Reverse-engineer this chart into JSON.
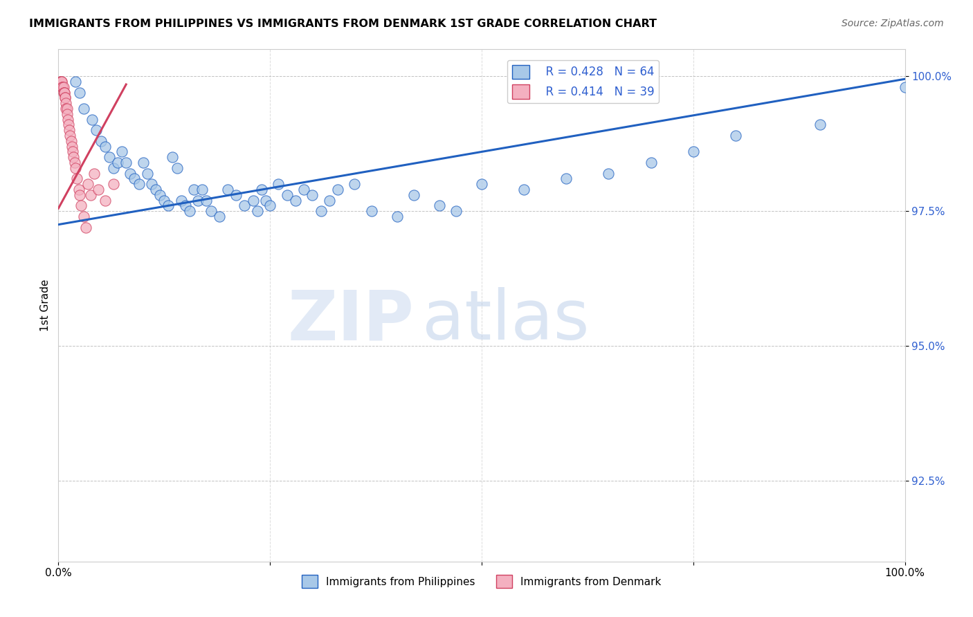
{
  "title": "IMMIGRANTS FROM PHILIPPINES VS IMMIGRANTS FROM DENMARK 1ST GRADE CORRELATION CHART",
  "source": "Source: ZipAtlas.com",
  "ylabel": "1st Grade",
  "legend_label_blue": "Immigrants from Philippines",
  "legend_label_pink": "Immigrants from Denmark",
  "R_blue": 0.428,
  "N_blue": 64,
  "R_pink": 0.414,
  "N_pink": 39,
  "xlim": [
    0.0,
    1.0
  ],
  "ylim": [
    0.91,
    1.005
  ],
  "yticks": [
    0.925,
    0.95,
    0.975,
    1.0
  ],
  "ytick_labels": [
    "92.5%",
    "95.0%",
    "97.5%",
    "100.0%"
  ],
  "xticks": [
    0.0,
    0.25,
    0.5,
    0.75,
    1.0
  ],
  "xtick_labels": [
    "0.0%",
    "",
    "",
    "",
    "100.0%"
  ],
  "watermark_zip": "ZIP",
  "watermark_atlas": "atlas",
  "color_blue": "#a8c8e8",
  "color_pink": "#f4b0c0",
  "color_blue_line": "#2060c0",
  "color_pink_line": "#d04060",
  "blue_line_x": [
    0.0,
    1.0
  ],
  "blue_line_y": [
    0.9725,
    0.9995
  ],
  "pink_line_x": [
    0.0,
    0.08
  ],
  "pink_line_y": [
    0.9755,
    0.9985
  ],
  "blue_x": [
    0.02,
    0.025,
    0.03,
    0.04,
    0.045,
    0.05,
    0.055,
    0.06,
    0.065,
    0.07,
    0.075,
    0.08,
    0.085,
    0.09,
    0.095,
    0.1,
    0.105,
    0.11,
    0.115,
    0.12,
    0.125,
    0.13,
    0.135,
    0.14,
    0.145,
    0.15,
    0.155,
    0.16,
    0.165,
    0.17,
    0.175,
    0.18,
    0.19,
    0.2,
    0.21,
    0.22,
    0.23,
    0.235,
    0.24,
    0.245,
    0.25,
    0.26,
    0.27,
    0.28,
    0.29,
    0.3,
    0.31,
    0.32,
    0.33,
    0.35,
    0.37,
    0.4,
    0.42,
    0.45,
    0.47,
    0.5,
    0.55,
    0.6,
    0.65,
    0.7,
    0.75,
    0.8,
    0.9,
    1.0
  ],
  "blue_y": [
    0.999,
    0.997,
    0.994,
    0.992,
    0.99,
    0.988,
    0.987,
    0.985,
    0.983,
    0.984,
    0.986,
    0.984,
    0.982,
    0.981,
    0.98,
    0.984,
    0.982,
    0.98,
    0.979,
    0.978,
    0.977,
    0.976,
    0.985,
    0.983,
    0.977,
    0.976,
    0.975,
    0.979,
    0.977,
    0.979,
    0.977,
    0.975,
    0.974,
    0.979,
    0.978,
    0.976,
    0.977,
    0.975,
    0.979,
    0.977,
    0.976,
    0.98,
    0.978,
    0.977,
    0.979,
    0.978,
    0.975,
    0.977,
    0.979,
    0.98,
    0.975,
    0.974,
    0.978,
    0.976,
    0.975,
    0.98,
    0.979,
    0.981,
    0.982,
    0.984,
    0.986,
    0.989,
    0.991,
    0.998
  ],
  "pink_x": [
    0.002,
    0.003,
    0.004,
    0.004,
    0.005,
    0.005,
    0.005,
    0.006,
    0.006,
    0.007,
    0.007,
    0.008,
    0.008,
    0.009,
    0.009,
    0.01,
    0.01,
    0.011,
    0.012,
    0.013,
    0.014,
    0.015,
    0.016,
    0.017,
    0.018,
    0.019,
    0.02,
    0.022,
    0.024,
    0.025,
    0.027,
    0.03,
    0.032,
    0.035,
    0.038,
    0.042,
    0.047,
    0.055,
    0.065
  ],
  "pink_y": [
    0.999,
    0.999,
    0.999,
    0.999,
    0.998,
    0.998,
    0.998,
    0.998,
    0.997,
    0.997,
    0.997,
    0.996,
    0.996,
    0.995,
    0.994,
    0.994,
    0.993,
    0.992,
    0.991,
    0.99,
    0.989,
    0.988,
    0.987,
    0.986,
    0.985,
    0.984,
    0.983,
    0.981,
    0.979,
    0.978,
    0.976,
    0.974,
    0.972,
    0.98,
    0.978,
    0.982,
    0.979,
    0.977,
    0.98
  ]
}
